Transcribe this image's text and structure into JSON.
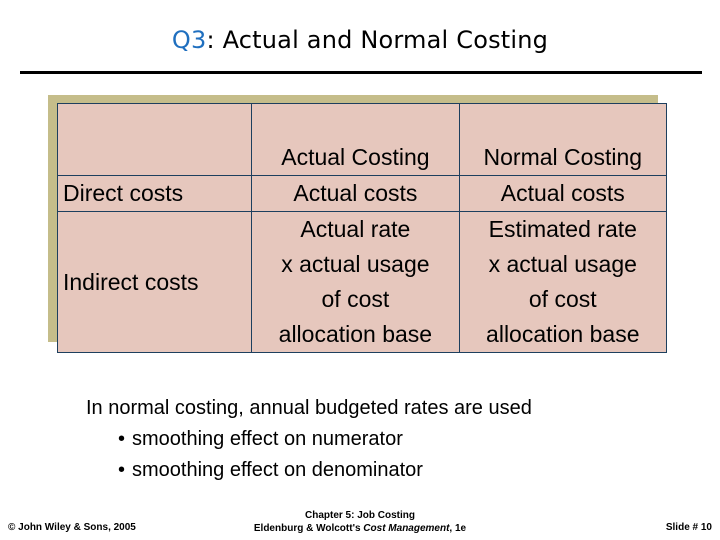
{
  "title": {
    "prefix": "Q3",
    "rest": ": Actual and Normal Costing"
  },
  "table": {
    "headers": [
      "",
      "Actual Costing",
      "Normal Costing"
    ],
    "direct": {
      "label": "Direct costs",
      "actual": "Actual costs",
      "normal": "Actual costs"
    },
    "indirect": {
      "label": "Indirect costs",
      "actual": [
        "Actual rate",
        "x actual usage",
        "of cost",
        "allocation base"
      ],
      "normal": [
        "Estimated rate",
        "x actual usage",
        "of cost",
        "allocation base"
      ]
    }
  },
  "notes": {
    "main": "In normal costing, annual budgeted rates are used",
    "bullets": [
      "smoothing effect on numerator",
      "smoothing effect on denominator"
    ],
    "bullet_glyph": "•"
  },
  "footer": {
    "left": "© John Wiley & Sons, 2005",
    "center_line1": "Chapter 5: Job Costing",
    "center_line2_pre": "Eldenburg & Wolcott's ",
    "center_line2_em": "Cost Management",
    "center_line2_post": ", 1e",
    "right_label": "Slide # ",
    "right_number": "10"
  },
  "colors": {
    "title_accent": "#1f6fbf",
    "cell_fill": "#e6c7bd",
    "shadow": "#c5bd8a",
    "grid": "#1d3f5e"
  }
}
